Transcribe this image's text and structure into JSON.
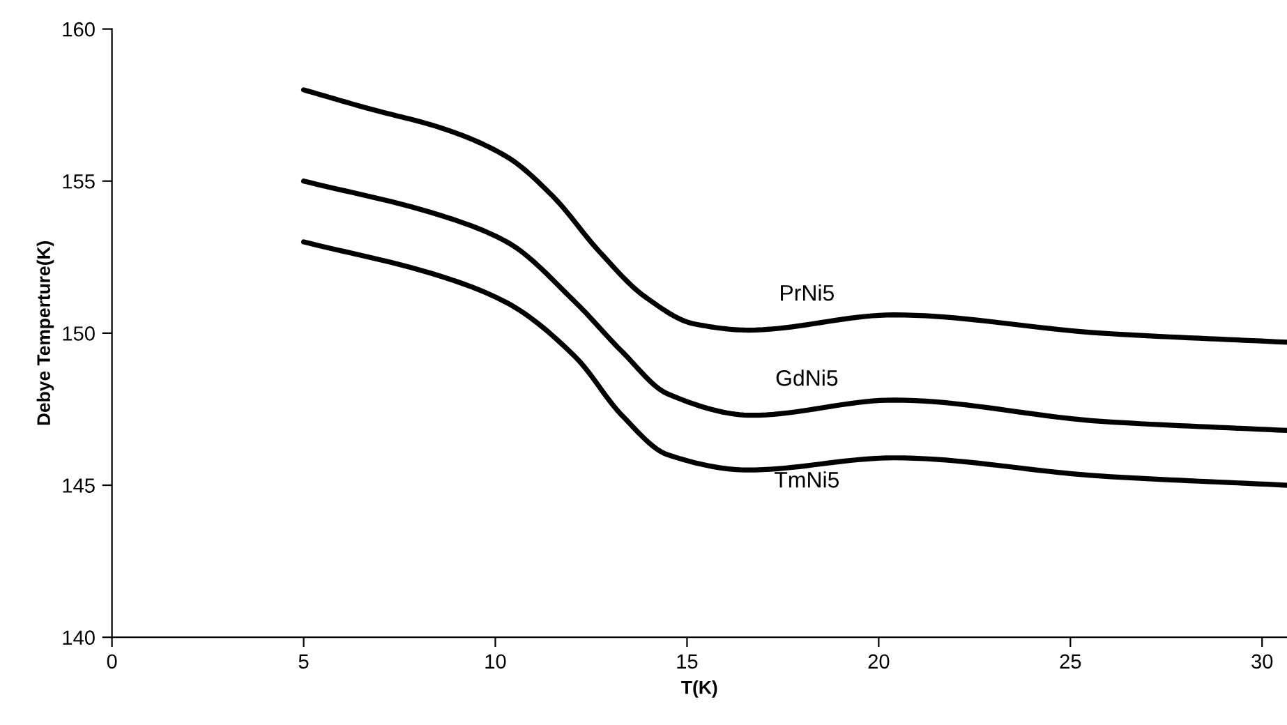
{
  "chart_data": {
    "type": "line",
    "xlabel": "T(K)",
    "ylabel": "Debye Temperture(K)",
    "xlim": [
      0,
      30.65
    ],
    "xticks": [
      0,
      5,
      10,
      15,
      20,
      25,
      30
    ],
    "ylim": [
      140,
      160
    ],
    "yticks": [
      140,
      145,
      150,
      155,
      160
    ],
    "grid": false,
    "legend": false,
    "marker": "none",
    "line_style": "solid",
    "series": [
      {
        "name": "PrNi5",
        "color": "#000000",
        "x": [
          5,
          6.65,
          8.7,
          10.3,
          11.5,
          12.7,
          13.9,
          15.2,
          16.6,
          20.4,
          25.8,
          30.65
        ],
        "values": [
          158.0,
          157.4,
          156.7,
          155.8,
          154.5,
          152.7,
          151.2,
          150.3,
          150.1,
          150.6,
          150.0,
          149.7
        ]
      },
      {
        "name": "GdNi5",
        "color": "#000000",
        "x": [
          5,
          8.5,
          10.3,
          12.1,
          13.3,
          14.5,
          16.7,
          20.4,
          25.8,
          30.65
        ],
        "values": [
          155.0,
          153.9,
          153.0,
          151.0,
          149.4,
          148.0,
          147.3,
          147.8,
          147.1,
          146.8
        ]
      },
      {
        "name": "TmNi5",
        "color": "#000000",
        "x": [
          5,
          8.5,
          10.3,
          12.1,
          13.3,
          14.5,
          16.6,
          20.4,
          25.8,
          30.65
        ],
        "values": [
          153.0,
          151.9,
          151.0,
          149.2,
          147.3,
          146.0,
          145.5,
          145.9,
          145.3,
          145.0
        ]
      }
    ]
  }
}
